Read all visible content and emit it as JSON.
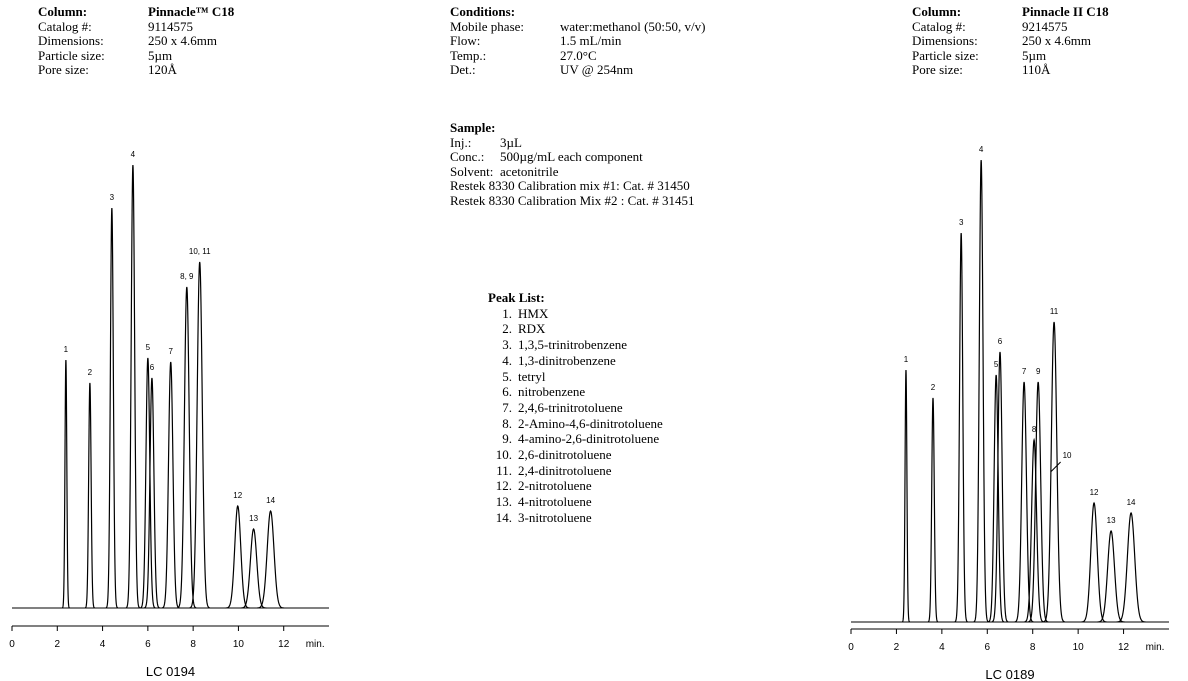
{
  "left_info": {
    "rows": [
      [
        "Column:",
        "Pinnacle™ C18"
      ],
      [
        "Catalog #:",
        "9114575"
      ],
      [
        "Dimensions:",
        "250 x 4.6mm"
      ],
      [
        "Particle size:",
        "5µm"
      ],
      [
        "Pore size:",
        "120Å"
      ]
    ]
  },
  "conditions": {
    "title": "Conditions:",
    "rows": [
      [
        "Mobile phase:",
        "water:methanol (50:50, v/v)"
      ],
      [
        "Flow:",
        "1.5 mL/min"
      ],
      [
        "Temp.:",
        "27.0°C"
      ],
      [
        "Det.:",
        "UV @ 254nm"
      ]
    ]
  },
  "sample": {
    "title": "Sample:",
    "rows": [
      [
        "Inj.:",
        "3µL"
      ],
      [
        "Conc.:",
        "500µg/mL each component"
      ],
      [
        "Solvent:",
        "acetonitrile"
      ]
    ],
    "lines": [
      "Restek 8330 Calibration mix #1: Cat. # 31450",
      "Restek 8330 Calibration Mix #2 : Cat. # 31451"
    ]
  },
  "peak_list": {
    "title": "Peak List:",
    "items": [
      {
        "number": "1.",
        "name": "HMX"
      },
      {
        "number": "2.",
        "name": "RDX"
      },
      {
        "number": "3.",
        "name": "1,3,5-trinitrobenzene"
      },
      {
        "number": "4.",
        "name": "1,3-dinitrobenzene"
      },
      {
        "number": "5.",
        "name": "tetryl"
      },
      {
        "number": "6.",
        "name": "nitrobenzene"
      },
      {
        "number": "7.",
        "name": "2,4,6-trinitrotoluene"
      },
      {
        "number": "8.",
        "name": "2-Amino-4,6-dinitrotoluene"
      },
      {
        "number": "9.",
        "name": "4-amino-2,6-dinitrotoluene"
      },
      {
        "number": "10.",
        "name": "2,6-dinitrotoluene"
      },
      {
        "number": "11.",
        "name": "2,4-dinitrotoluene"
      },
      {
        "number": "12.",
        "name": "2-nitrotoluene"
      },
      {
        "number": "13.",
        "name": "4-nitrotoluene"
      },
      {
        "number": "14.",
        "name": "3-nitrotoluene"
      }
    ]
  },
  "right_info": {
    "rows": [
      [
        "Column:",
        "Pinnacle II C18"
      ],
      [
        "Catalog #:",
        "9214575"
      ],
      [
        "Dimensions:",
        "250 x 4.6mm"
      ],
      [
        "Particle size:",
        "5µm"
      ],
      [
        "Pore size:",
        "110Å"
      ]
    ]
  },
  "chart_data": [
    {
      "type": "chromatogram",
      "color": "#000000",
      "xlabel": "min.",
      "footer": "LC 0194",
      "xlim": [
        0,
        14
      ],
      "xticks": [
        0,
        2,
        4,
        6,
        8,
        10,
        12
      ],
      "ylim": [
        0,
        460
      ],
      "labels": [
        "1",
        "2",
        "3",
        "4",
        "5",
        "6",
        "7",
        "8, 9",
        "10, 11",
        "12",
        "13",
        "14"
      ],
      "x": [
        2.38,
        3.44,
        4.41,
        5.34,
        6.0,
        6.18,
        7.01,
        7.72,
        8.29,
        9.97,
        10.67,
        11.42
      ],
      "values": [
        248,
        225,
        400,
        443,
        250,
        230,
        246,
        321,
        346,
        102,
        79,
        97
      ]
    },
    {
      "type": "chromatogram",
      "color": "#000000",
      "xlabel": "min.",
      "footer": "LC 0189",
      "xlim": [
        0,
        14
      ],
      "xticks": [
        0,
        2,
        4,
        6,
        8,
        10,
        12
      ],
      "ylim": [
        0,
        460
      ],
      "labels": [
        "1",
        "2",
        "3",
        "4",
        "5",
        "6",
        "7",
        "8",
        "9",
        "10",
        "11",
        "12",
        "13",
        "14"
      ],
      "x": [
        2.42,
        3.61,
        4.85,
        5.73,
        6.39,
        6.56,
        7.62,
        8.06,
        8.24,
        8.7,
        8.94,
        10.7,
        11.45,
        12.33
      ],
      "values": [
        252,
        224,
        389,
        462,
        247,
        270,
        240,
        182,
        240,
        null,
        300,
        119,
        91,
        109
      ]
    }
  ]
}
